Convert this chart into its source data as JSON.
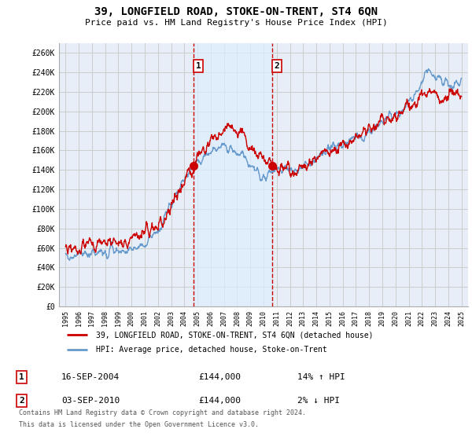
{
  "title": "39, LONGFIELD ROAD, STOKE-ON-TRENT, ST4 6QN",
  "subtitle": "Price paid vs. HM Land Registry's House Price Index (HPI)",
  "ylim": [
    0,
    270000
  ],
  "ytick_vals": [
    0,
    20000,
    40000,
    60000,
    80000,
    100000,
    120000,
    140000,
    160000,
    180000,
    200000,
    220000,
    240000,
    260000
  ],
  "ytick_labels": [
    "£0",
    "£20K",
    "£40K",
    "£60K",
    "£80K",
    "£100K",
    "£120K",
    "£140K",
    "£160K",
    "£180K",
    "£200K",
    "£220K",
    "£240K",
    "£260K"
  ],
  "xlim": [
    1994.5,
    2025.5
  ],
  "xtick_vals": [
    1995,
    1996,
    1997,
    1998,
    1999,
    2000,
    2001,
    2002,
    2003,
    2004,
    2005,
    2006,
    2007,
    2008,
    2009,
    2010,
    2011,
    2012,
    2013,
    2014,
    2015,
    2016,
    2017,
    2018,
    2019,
    2020,
    2021,
    2022,
    2023,
    2024,
    2025
  ],
  "sale1_year": 2004.71,
  "sale1_price": 144000,
  "sale1_date": "16-SEP-2004",
  "sale1_pct": "14% ↑ HPI",
  "sale2_year": 2010.67,
  "sale2_price": 144000,
  "sale2_date": "03-SEP-2010",
  "sale2_pct": "2% ↓ HPI",
  "legend_line1": "39, LONGFIELD ROAD, STOKE-ON-TRENT, ST4 6QN (detached house)",
  "legend_line2": "HPI: Average price, detached house, Stoke-on-Trent",
  "footer1": "Contains HM Land Registry data © Crown copyright and database right 2024.",
  "footer2": "This data is licensed under the Open Government Licence v3.0.",
  "price_color": "#cc0000",
  "hpi_color": "#6699cc",
  "shade_color": "#ddeeff",
  "grid_color": "#cccccc",
  "vline_color": "#cc0000",
  "bg_color": "#ffffff",
  "plot_bg_color": "#e8eef8"
}
